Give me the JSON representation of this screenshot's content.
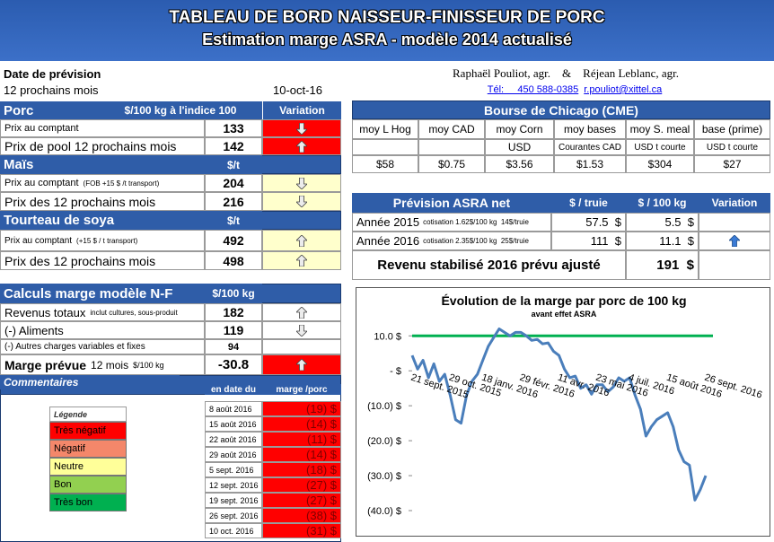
{
  "header": {
    "title": "TABLEAU DE BORD NAISSEUR-FINISSEUR DE PORC",
    "subtitle": "Estimation marge ASRA - modèle 2014 actualisé"
  },
  "forecast": {
    "label": "Date de prévision",
    "horizon": "12 prochains mois",
    "date": "10-oct-16"
  },
  "authors": {
    "names": "Raphaël Pouliot, agr.    &    Réjean Leblanc, agr.",
    "phone": "Tél:     450 588-0385",
    "email": "r.pouliot@xittel.ca"
  },
  "porc": {
    "title": "Porc",
    "unit": "$/100 kg à l'indice 100",
    "variation": "Variation",
    "rows": [
      {
        "label": "Prix au comptant",
        "value": 133
      },
      {
        "label": "Prix de pool 12 prochains mois",
        "value": 142
      }
    ]
  },
  "mais": {
    "title": "Maïs",
    "unit": "$/t",
    "rows": [
      {
        "label": "Prix au comptant",
        "note": "(FOB +15 $ /t transport)",
        "value": 204
      },
      {
        "label": "Prix des 12 prochains mois",
        "value": 216
      }
    ]
  },
  "soya": {
    "title": "Tourteau de soya",
    "unit": "$/t",
    "rows": [
      {
        "label": "Prix au comptant",
        "note": "(+15 $ / t transport)",
        "value": 492
      },
      {
        "label": "Prix des 12 prochains mois",
        "value": 498
      }
    ]
  },
  "marge": {
    "title": "Calculs marge  modèle N-F",
    "unit": "$/100 kg",
    "rows": [
      {
        "label": "Revenus totaux",
        "note": "inclut cultures, sous-produit",
        "value": 182
      },
      {
        "label": "(-) Aliments",
        "value": 119
      },
      {
        "label": "(-) Autres charges variables et fixes",
        "value": 94
      },
      {
        "label": "Marge prévue",
        "note": "12 mois",
        "unit": "$/100 kg",
        "value": -30.8
      }
    ]
  },
  "commentaires": {
    "title": "Commentaires",
    "date_header": "en date du",
    "margin_header": "marge /porc",
    "legend_title": "Légende",
    "legend": [
      "Très négatif",
      "Négatif",
      "Neutre",
      "Bon",
      "Très bon"
    ],
    "history": [
      {
        "date": "8 août 2016",
        "margin": "(19) $"
      },
      {
        "date": "15 août 2016",
        "margin": "(14) $"
      },
      {
        "date": "22 août 2016",
        "margin": "(11) $"
      },
      {
        "date": "29 août 2016",
        "margin": "(14) $"
      },
      {
        "date": "5 sept. 2016",
        "margin": "(18) $"
      },
      {
        "date": "12 sept. 2016",
        "margin": "(27) $"
      },
      {
        "date": "19 sept. 2016",
        "margin": "(27) $"
      },
      {
        "date": "26 sept. 2016",
        "margin": "(38) $"
      },
      {
        "date": "10 oct. 2016",
        "margin": "(31) $"
      }
    ]
  },
  "chicago": {
    "title": "Bourse de Chicago (CME)",
    "columns": [
      {
        "name": "moy L Hog",
        "value": "$58"
      },
      {
        "name": "moy CAD",
        "value": "$0.75"
      },
      {
        "name": "moy Corn",
        "unit": "USD",
        "value": "$3.56"
      },
      {
        "name": "moy bases",
        "unit": "Courantes CAD",
        "value": "$1.53"
      },
      {
        "name": "moy S. meal",
        "unit": "USD t courte",
        "value": "$304"
      },
      {
        "name": "base (prime)",
        "unit": "USD t courte",
        "value": "$27"
      }
    ]
  },
  "asra": {
    "title": "Prévision ASRA net",
    "col_truie": "$ / truie",
    "col_100kg": "$ / 100 kg",
    "variation": "Variation",
    "rows": [
      {
        "label": "Année 2015",
        "note": "cotisation 1.62$/100 kg  14$/truie",
        "truie": "57.5  $",
        "kg100": "5.5  $"
      },
      {
        "label": "Année 2016",
        "note": "cotisation 2.35$/100 kg  25$/truie",
        "truie": "111  $",
        "kg100": "11.1  $"
      }
    ],
    "total_label": "Revenu stabilisé 2016 prévu ajusté",
    "total": "191  $"
  },
  "chart_data": {
    "type": "line",
    "title": "Évolution de la marge par porc de 100 kg",
    "subtitle": "avant effet ASRA",
    "categories": [
      "21 sept. 2015",
      null,
      null,
      null,
      null,
      null,
      null,
      "29 oct. 2015",
      null,
      null,
      null,
      null,
      null,
      "18 janv. 2016",
      null,
      null,
      null,
      null,
      null,
      null,
      "29 févr. 2016",
      null,
      null,
      null,
      null,
      null,
      null,
      "11 avr. 2016",
      null,
      null,
      null,
      null,
      null,
      null,
      "23 mai 2016",
      null,
      null,
      null,
      null,
      null,
      "4 juil. 2016",
      null,
      null,
      null,
      null,
      null,
      null,
      "15 août 2016",
      null,
      null,
      null,
      null,
      null,
      null,
      "26 sept. 2016"
    ],
    "values": [
      4.4,
      0.5,
      3,
      -2,
      2,
      -3,
      -1,
      -7,
      -14,
      -15,
      -7,
      -3,
      -1,
      3,
      7,
      9.5,
      12,
      11,
      10,
      11,
      11,
      10,
      8.7,
      9,
      7.7,
      8,
      5.6,
      4.4,
      0.5,
      -2,
      -1.5,
      -5,
      -4,
      -6.7,
      -4,
      -4,
      -6,
      -4.6,
      -2,
      -3,
      -2,
      -7,
      -11,
      -18.7,
      -16,
      -14,
      -13,
      -12,
      -16,
      -22.6,
      -26,
      -27,
      -37,
      -34,
      -30
    ],
    "color": "#4a7ebb",
    "reference_line": {
      "value": 10,
      "color": "#00b050"
    },
    "ylim": [
      -40,
      17
    ],
    "yticks": [
      {
        "value": 10,
        "label": "10.0 $"
      },
      {
        "value": 0,
        "label": "-  $"
      },
      {
        "value": -10,
        "label": "(10.0) $"
      },
      {
        "value": -20,
        "label": "(20.0) $"
      },
      {
        "value": -30,
        "label": "(30.0) $"
      },
      {
        "value": -40,
        "label": "(40.0) $"
      }
    ]
  }
}
